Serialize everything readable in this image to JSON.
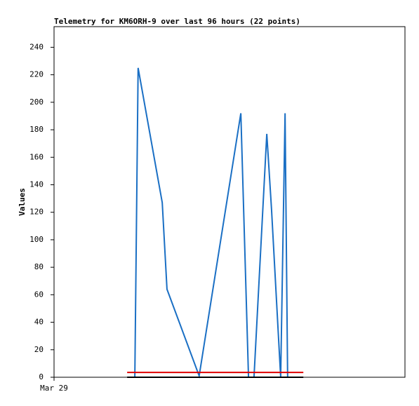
{
  "chart_data": {
    "type": "line",
    "title": "Telemetry for KM6ORH-9 over last 96 hours (22 points)",
    "y_label": "Values",
    "xlim": [
      0,
      96
    ],
    "xticks": [
      {
        "value": 0,
        "label": "Mar 29"
      }
    ],
    "ylim": [
      0,
      255
    ],
    "yticks": [
      0,
      20,
      40,
      60,
      80,
      100,
      120,
      140,
      160,
      180,
      200,
      220,
      240
    ],
    "series": [
      {
        "color": "#1a6fc4",
        "x": [
          22.1,
          23.0,
          29.6,
          30.9,
          39.7,
          51.1,
          53.2,
          54.7,
          58.2,
          59.5,
          62.0,
          63.2,
          63.9
        ],
        "values": [
          0,
          225,
          127,
          64,
          1,
          192,
          0,
          0,
          177,
          122,
          0,
          192,
          0
        ]
      },
      {
        "color": "#e00000",
        "x": [
          20.0,
          68.2
        ],
        "values": [
          3.5,
          3.5
        ]
      },
      {
        "color": "#000000",
        "x": [
          20.0,
          68.2
        ],
        "values": [
          0,
          0
        ]
      }
    ]
  }
}
